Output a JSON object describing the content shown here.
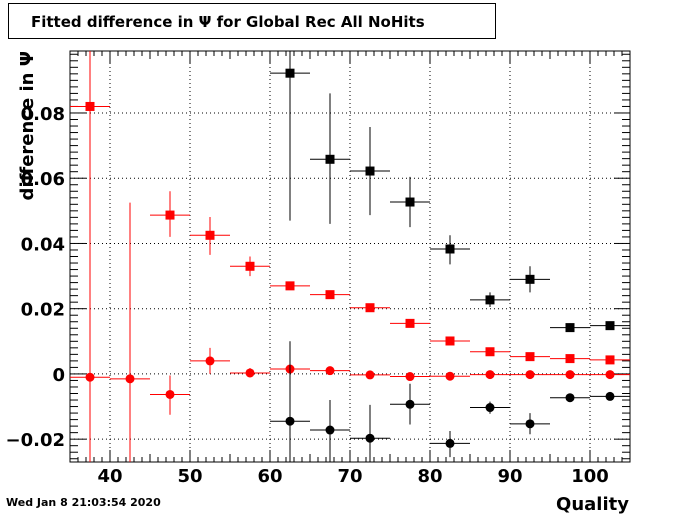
{
  "title": "Fitted difference in  Ψ  for Global Rec All NoHits",
  "timestamp": "Wed Jan  8 21:03:54 2020",
  "chart_data": {
    "type": "scatter",
    "xlabel": "Quality",
    "ylabel": "difference in  Ψ",
    "xlim": [
      35,
      105
    ],
    "ylim": [
      -0.027,
      0.099
    ],
    "xticks": [
      40,
      50,
      60,
      70,
      80,
      90,
      100
    ],
    "yticks": [
      -0.02,
      0,
      0.02,
      0.04,
      0.06,
      0.08
    ],
    "ytick_labels": [
      "−0.02",
      "0",
      "0.02",
      "0.04",
      "0.06",
      "0.08"
    ],
    "grid": true,
    "series": [
      {
        "marker": "square",
        "color": "#ff0000",
        "points": [
          {
            "x": 37.5,
            "y": 0.082,
            "ylo": -0.027,
            "yhi": 0.099
          },
          {
            "x": 47.5,
            "y": 0.0487,
            "ylo": 0.042,
            "yhi": 0.056
          },
          {
            "x": 52.5,
            "y": 0.0425,
            "ylo": 0.0365,
            "yhi": 0.0481
          },
          {
            "x": 57.5,
            "y": 0.033,
            "ylo": 0.03,
            "yhi": 0.036
          },
          {
            "x": 62.5,
            "y": 0.027,
            "ylo": 0.026,
            "yhi": 0.028
          },
          {
            "x": 67.5,
            "y": 0.0243,
            "ylo": 0.0236,
            "yhi": 0.025
          },
          {
            "x": 72.5,
            "y": 0.0203,
            "ylo": 0.0198,
            "yhi": 0.0208
          },
          {
            "x": 77.5,
            "y": 0.0155,
            "ylo": 0.0152,
            "yhi": 0.0158
          },
          {
            "x": 82.5,
            "y": 0.0101,
            "ylo": 0.0099,
            "yhi": 0.0103
          },
          {
            "x": 87.5,
            "y": 0.0068,
            "ylo": 0.0066,
            "yhi": 0.007
          },
          {
            "x": 92.5,
            "y": 0.0053,
            "ylo": 0.0052,
            "yhi": 0.0054
          },
          {
            "x": 97.5,
            "y": 0.0047,
            "ylo": 0.0046,
            "yhi": 0.0048
          },
          {
            "x": 102.5,
            "y": 0.0043,
            "ylo": 0.0042,
            "yhi": 0.0044
          }
        ]
      },
      {
        "marker": "circle",
        "color": "#ff0000",
        "points": [
          {
            "x": 37.5,
            "y": -0.001,
            "ylo": -0.027,
            "yhi": 0.099
          },
          {
            "x": 42.5,
            "y": -0.0015,
            "ylo": -0.027,
            "yhi": 0.0525
          },
          {
            "x": 47.5,
            "y": -0.0063,
            "ylo": -0.0125,
            "yhi": -0.0005
          },
          {
            "x": 52.5,
            "y": 0.004,
            "ylo": 0.0,
            "yhi": 0.008
          },
          {
            "x": 57.5,
            "y": 0.0003,
            "ylo": -0.001,
            "yhi": 0.0018
          },
          {
            "x": 62.5,
            "y": 0.0015,
            "ylo": 0.0005,
            "yhi": 0.0025
          },
          {
            "x": 67.5,
            "y": 0.001,
            "ylo": 0.0003,
            "yhi": 0.0017
          },
          {
            "x": 72.5,
            "y": -0.0003,
            "ylo": -0.0008,
            "yhi": 0.0002
          },
          {
            "x": 77.5,
            "y": -0.0008,
            "ylo": -0.0012,
            "yhi": -0.0004
          },
          {
            "x": 82.5,
            "y": -0.0007,
            "ylo": -0.001,
            "yhi": -0.0004
          },
          {
            "x": 87.5,
            "y": -0.0002,
            "ylo": -0.0004,
            "yhi": 0.0
          },
          {
            "x": 92.5,
            "y": -0.0002,
            "ylo": -0.0003,
            "yhi": -0.0001
          },
          {
            "x": 97.5,
            "y": -0.0002,
            "ylo": -0.0003,
            "yhi": -0.0001
          },
          {
            "x": 102.5,
            "y": -0.0002,
            "ylo": -0.0003,
            "yhi": -0.0001
          }
        ]
      },
      {
        "marker": "square",
        "color": "#000000",
        "points": [
          {
            "x": 62.5,
            "y": 0.0922,
            "ylo": 0.047,
            "yhi": 0.099
          },
          {
            "x": 67.5,
            "y": 0.0658,
            "ylo": 0.046,
            "yhi": 0.086
          },
          {
            "x": 72.5,
            "y": 0.0622,
            "ylo": 0.0487,
            "yhi": 0.0757
          },
          {
            "x": 77.5,
            "y": 0.0527,
            "ylo": 0.045,
            "yhi": 0.0604
          },
          {
            "x": 82.5,
            "y": 0.0383,
            "ylo": 0.0336,
            "yhi": 0.0425
          },
          {
            "x": 87.5,
            "y": 0.0227,
            "ylo": 0.0205,
            "yhi": 0.025
          },
          {
            "x": 92.5,
            "y": 0.029,
            "ylo": 0.025,
            "yhi": 0.033
          },
          {
            "x": 97.5,
            "y": 0.0142,
            "ylo": 0.013,
            "yhi": 0.0155
          },
          {
            "x": 102.5,
            "y": 0.0148,
            "ylo": 0.014,
            "yhi": 0.0156
          }
        ]
      },
      {
        "marker": "circle",
        "color": "#000000",
        "points": [
          {
            "x": 62.5,
            "y": -0.0145,
            "ylo": -0.027,
            "yhi": 0.01
          },
          {
            "x": 67.5,
            "y": -0.0172,
            "ylo": -0.027,
            "yhi": -0.008
          },
          {
            "x": 72.5,
            "y": -0.0197,
            "ylo": -0.027,
            "yhi": -0.0095
          },
          {
            "x": 77.5,
            "y": -0.0093,
            "ylo": -0.0155,
            "yhi": -0.003
          },
          {
            "x": 82.5,
            "y": -0.0213,
            "ylo": -0.0255,
            "yhi": -0.0175
          },
          {
            "x": 87.5,
            "y": -0.0103,
            "ylo": -0.0122,
            "yhi": -0.0085
          },
          {
            "x": 92.5,
            "y": -0.0153,
            "ylo": -0.0185,
            "yhi": -0.012
          },
          {
            "x": 97.5,
            "y": -0.0073,
            "ylo": -0.0083,
            "yhi": -0.0063
          },
          {
            "x": 102.5,
            "y": -0.0069,
            "ylo": -0.0076,
            "yhi": -0.0062
          }
        ]
      }
    ]
  }
}
